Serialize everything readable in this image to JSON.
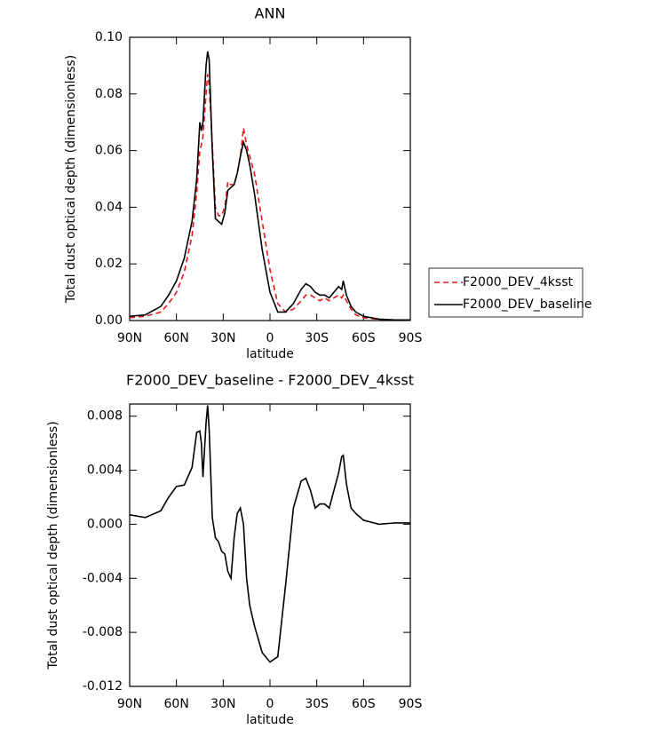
{
  "chart_data": [
    {
      "type": "line",
      "title": "ANN",
      "xlabel": "latitude",
      "ylabel": "Total dust optical depth (dimensionless)",
      "x": [
        90,
        80,
        70,
        65,
        60,
        55,
        50,
        47,
        45,
        44,
        43,
        41,
        40,
        39,
        37,
        35,
        33,
        31,
        29,
        27,
        25,
        23,
        21,
        19,
        17,
        15,
        13,
        10,
        5,
        0,
        -5,
        -10,
        -15,
        -20,
        -23,
        -26,
        -29,
        -32,
        -35,
        -38,
        -41,
        -44,
        -46,
        -47,
        -49,
        -52,
        -55,
        -60,
        -70,
        -80,
        -90
      ],
      "xlim": [
        90,
        -90
      ],
      "xticks": [
        {
          "value": 90,
          "label": "90N"
        },
        {
          "value": 60,
          "label": "60N"
        },
        {
          "value": 30,
          "label": "30N"
        },
        0,
        {
          "value": -30,
          "label": "30S"
        },
        {
          "value": -60,
          "label": "60S"
        },
        {
          "value": -90,
          "label": "90S"
        }
      ],
      "ylim": [
        0,
        0.1
      ],
      "yticks": [
        {
          "value": 0,
          "label": "0.00"
        },
        0.02,
        0.04,
        0.06,
        0.08,
        {
          "value": 0.1,
          "label": "0.10"
        }
      ],
      "legend_position": "right",
      "series": [
        {
          "name": "F2000_DEV_4ksst",
          "color": "#e8191c",
          "line_style": "dashed",
          "values": [
            0.001,
            0.0015,
            0.003,
            0.006,
            0.01,
            0.017,
            0.03,
            0.045,
            0.06,
            0.062,
            0.065,
            0.08,
            0.087,
            0.083,
            0.062,
            0.04,
            0.037,
            0.037,
            0.04,
            0.049,
            0.048,
            0.048,
            0.052,
            0.058,
            0.068,
            0.062,
            0.058,
            0.052,
            0.035,
            0.018,
            0.006,
            0.003,
            0.004,
            0.007,
            0.009,
            0.009,
            0.008,
            0.007,
            0.008,
            0.007,
            0.008,
            0.009,
            0.008,
            0.009,
            0.007,
            0.004,
            0.002,
            0.001,
            0.0004,
            0.0002,
            0.0002
          ]
        },
        {
          "name": "F2000_DEV_baseline",
          "color": "#000000",
          "line_style": "solid",
          "values": [
            0.0015,
            0.002,
            0.005,
            0.009,
            0.014,
            0.022,
            0.035,
            0.05,
            0.07,
            0.067,
            0.07,
            0.09,
            0.095,
            0.092,
            0.06,
            0.036,
            0.035,
            0.034,
            0.038,
            0.046,
            0.047,
            0.048,
            0.052,
            0.058,
            0.063,
            0.06,
            0.055,
            0.045,
            0.025,
            0.01,
            0.003,
            0.003,
            0.006,
            0.011,
            0.013,
            0.012,
            0.01,
            0.009,
            0.009,
            0.008,
            0.01,
            0.012,
            0.011,
            0.014,
            0.009,
            0.005,
            0.003,
            0.0015,
            0.0005,
            0.0002,
            0.0002
          ]
        }
      ]
    },
    {
      "type": "line",
      "title": "F2000_DEV_baseline - F2000_DEV_4ksst",
      "xlabel": "latitude",
      "ylabel": "Total dust optical depth (dimensionless)",
      "x": [
        90,
        80,
        70,
        65,
        60,
        55,
        50,
        47,
        45,
        44,
        43,
        41,
        40,
        39,
        37,
        35,
        33,
        31,
        29,
        27,
        25,
        23,
        21,
        19,
        17,
        15,
        13,
        10,
        5,
        0,
        -5,
        -10,
        -15,
        -20,
        -23,
        -26,
        -29,
        -32,
        -35,
        -38,
        -41,
        -44,
        -46,
        -47,
        -49,
        -52,
        -55,
        -60,
        -70,
        -80,
        -90
      ],
      "xlim": [
        90,
        -90
      ],
      "xticks": [
        {
          "value": 90,
          "label": "90N"
        },
        {
          "value": 60,
          "label": "60N"
        },
        {
          "value": 30,
          "label": "30N"
        },
        0,
        {
          "value": -30,
          "label": "30S"
        },
        {
          "value": -60,
          "label": "60S"
        },
        {
          "value": -90,
          "label": "90S"
        }
      ],
      "ylim": [
        -0.012,
        0.0089
      ],
      "yticks": [
        -0.012,
        -0.008,
        -0.004,
        {
          "value": 0,
          "label": "0.000"
        },
        0.004,
        0.008
      ],
      "series": [
        {
          "color": "#000000",
          "line_style": "solid",
          "values": [
            0.0007,
            0.0005,
            0.001,
            0.002,
            0.0028,
            0.0029,
            0.0042,
            0.0068,
            0.0069,
            0.006,
            0.0035,
            0.0075,
            0.0088,
            0.007,
            0.0005,
            -0.001,
            -0.0013,
            -0.002,
            -0.0022,
            -0.0035,
            -0.004,
            -0.001,
            0.0008,
            0.0012,
            0,
            -0.004,
            -0.006,
            -0.0075,
            -0.0095,
            -0.0102,
            -0.0098,
            -0.0045,
            0.0012,
            0.0032,
            0.0034,
            0.0025,
            0.0012,
            0.0015,
            0.0015,
            0.0012,
            0.0025,
            0.0038,
            0.005,
            0.0051,
            0.003,
            0.0012,
            0.0008,
            0.0003,
            0,
            0.0001,
            0.0001
          ]
        }
      ]
    }
  ]
}
